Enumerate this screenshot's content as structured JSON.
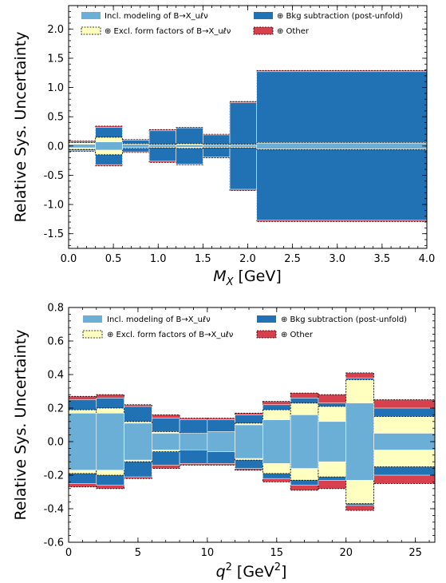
{
  "chart_data": [
    {
      "type": "bar",
      "stacked_uncertainty_bands": true,
      "xlabel": "M_X [GeV]",
      "ylabel": "Relative Sys. Uncertainty",
      "xlim": [
        0,
        4
      ],
      "ylim": [
        -1.75,
        2.4
      ],
      "x_ticks": [
        0.0,
        0.5,
        1.0,
        1.5,
        2.0,
        2.5,
        3.0,
        3.5,
        4.0
      ],
      "x_tick_labels": [
        "0.0",
        "0.5",
        "1.0",
        "1.5",
        "2.0",
        "2.5",
        "3.0",
        "3.5",
        "4.0"
      ],
      "y_ticks": [
        -1.5,
        -1.0,
        -0.5,
        0.0,
        0.5,
        1.0,
        1.5,
        2.0
      ],
      "y_tick_labels": [
        "-1.5",
        "-1.0",
        "-0.5",
        "0.0",
        "0.5",
        "1.0",
        "1.5",
        "2.0"
      ],
      "bin_edges": [
        0.0,
        0.3,
        0.6,
        0.9,
        1.2,
        1.5,
        1.8,
        2.1,
        4.0
      ],
      "series": [
        {
          "name": "Incl. modeling of B→X_uℓν",
          "values": [
            0.03,
            0.07,
            0.03,
            0.02,
            0.02,
            0.02,
            0.02,
            0.05
          ]
        },
        {
          "name": "⊕ Excl. form factors of B→X_uℓν",
          "values": [
            0.06,
            0.15,
            0.04,
            0.03,
            0.04,
            0.03,
            0.03,
            0.06
          ]
        },
        {
          "name": "⊕ Bkg subtraction (post-unfold)",
          "values": [
            0.08,
            0.32,
            0.1,
            0.26,
            0.31,
            0.19,
            0.74,
            1.27
          ]
        },
        {
          "name": "⊕ Other",
          "values": [
            0.09,
            0.34,
            0.11,
            0.28,
            0.32,
            0.2,
            0.76,
            1.29
          ]
        }
      ],
      "legend_position": "top",
      "grid": false
    },
    {
      "type": "bar",
      "stacked_uncertainty_bands": true,
      "xlabel": "q^2 [GeV^2]",
      "ylabel": "Relative Sys. Uncertainty",
      "xlim": [
        0,
        26.4
      ],
      "ylim": [
        -0.6,
        0.8
      ],
      "x_ticks": [
        0,
        5,
        10,
        15,
        20,
        25
      ],
      "x_tick_labels": [
        "0",
        "5",
        "10",
        "15",
        "20",
        "25"
      ],
      "y_ticks": [
        -0.6,
        -0.4,
        -0.2,
        0.0,
        0.2,
        0.4,
        0.6,
        0.8
      ],
      "y_tick_labels": [
        "-0.6",
        "-0.4",
        "-0.2",
        "0.0",
        "0.2",
        "0.4",
        "0.6",
        "0.8"
      ],
      "bin_edges": [
        0,
        2,
        4,
        6,
        8,
        10,
        12,
        14,
        16,
        18,
        20,
        22,
        26.4
      ],
      "series": [
        {
          "name": "Incl. modeling of B→X_uℓν",
          "values": [
            0.17,
            0.17,
            0.11,
            0.05,
            0.05,
            0.06,
            0.1,
            0.13,
            0.16,
            0.12,
            0.23,
            0.05
          ]
        },
        {
          "name": "⊕ Excl. form factors of B→X_uℓν",
          "values": [
            0.19,
            0.2,
            0.12,
            0.06,
            0.05,
            0.06,
            0.11,
            0.19,
            0.23,
            0.21,
            0.37,
            0.15
          ]
        },
        {
          "name": "⊕ Bkg subtraction (post-unfold)",
          "values": [
            0.25,
            0.26,
            0.21,
            0.14,
            0.13,
            0.13,
            0.16,
            0.22,
            0.26,
            0.23,
            0.38,
            0.2
          ]
        },
        {
          "name": "⊕ Other",
          "values": [
            0.27,
            0.28,
            0.22,
            0.16,
            0.14,
            0.14,
            0.17,
            0.24,
            0.29,
            0.28,
            0.41,
            0.25
          ]
        }
      ],
      "legend_position": "top",
      "grid": false
    }
  ],
  "legend_labels": {
    "incl": "Incl. modeling of B→X_uℓν",
    "excl": "⊕ Excl. form factors of B→X_uℓν",
    "bkg": "⊕ Bkg subtraction (post-unfold)",
    "other": "⊕ Other"
  },
  "axis_titles": {
    "top_x_main": "M",
    "top_x_sub": "X",
    "top_x_unit": "[GeV]",
    "bottom_x_main": "q",
    "bottom_x_sup": "2",
    "bottom_x_unit": "[GeV",
    "bottom_x_unit_sup": "2",
    "bottom_x_close": "]",
    "y": "Relative Sys. Uncertainty"
  },
  "colors": {
    "incl": "#6baed6",
    "excl": "#ffffbf",
    "bkg": "#2171b5",
    "other": "#d6414d"
  }
}
